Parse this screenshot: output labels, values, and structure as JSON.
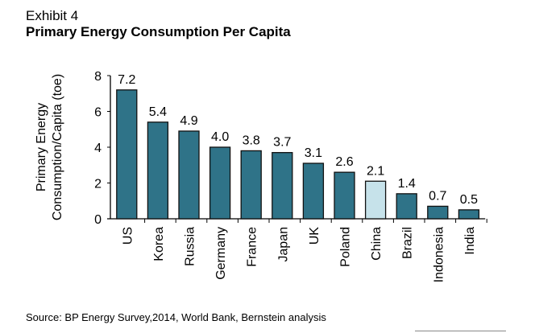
{
  "header": {
    "exhibit": "Exhibit 4",
    "title": "Primary Energy Consumption Per Capita"
  },
  "source": "Source: BP Energy Survey,2014, World Bank, Bernstein analysis",
  "colors": {
    "bar": "#2f7388",
    "highlight": "#c6e2ea",
    "edge": "#111111"
  },
  "chart_data": {
    "type": "bar",
    "title": "Primary Energy Consumption Per Capita",
    "xlabel": "",
    "ylabel": "Primary Energy Consumption/Capita (toe)",
    "ylabel_lines": [
      "Primary Energy",
      "Consumption/Capita (toe)"
    ],
    "ylim": [
      0,
      8
    ],
    "yticks": [
      0,
      2,
      4,
      6,
      8
    ],
    "grid": false,
    "categories": [
      "US",
      "Korea",
      "Russia",
      "Germany",
      "France",
      "Japan",
      "UK",
      "Poland",
      "China",
      "Brazil",
      "Indonesia",
      "India"
    ],
    "values": [
      7.2,
      5.4,
      4.9,
      4.0,
      3.8,
      3.7,
      3.1,
      2.6,
      2.1,
      1.4,
      0.7,
      0.5
    ],
    "data_labels": [
      "7.2",
      "5.4",
      "4.9",
      "4.0",
      "3.8",
      "3.7",
      "3.1",
      "2.6",
      "2.1",
      "1.4",
      "0.7",
      "0.5"
    ],
    "highlighted": [
      "China"
    ]
  }
}
